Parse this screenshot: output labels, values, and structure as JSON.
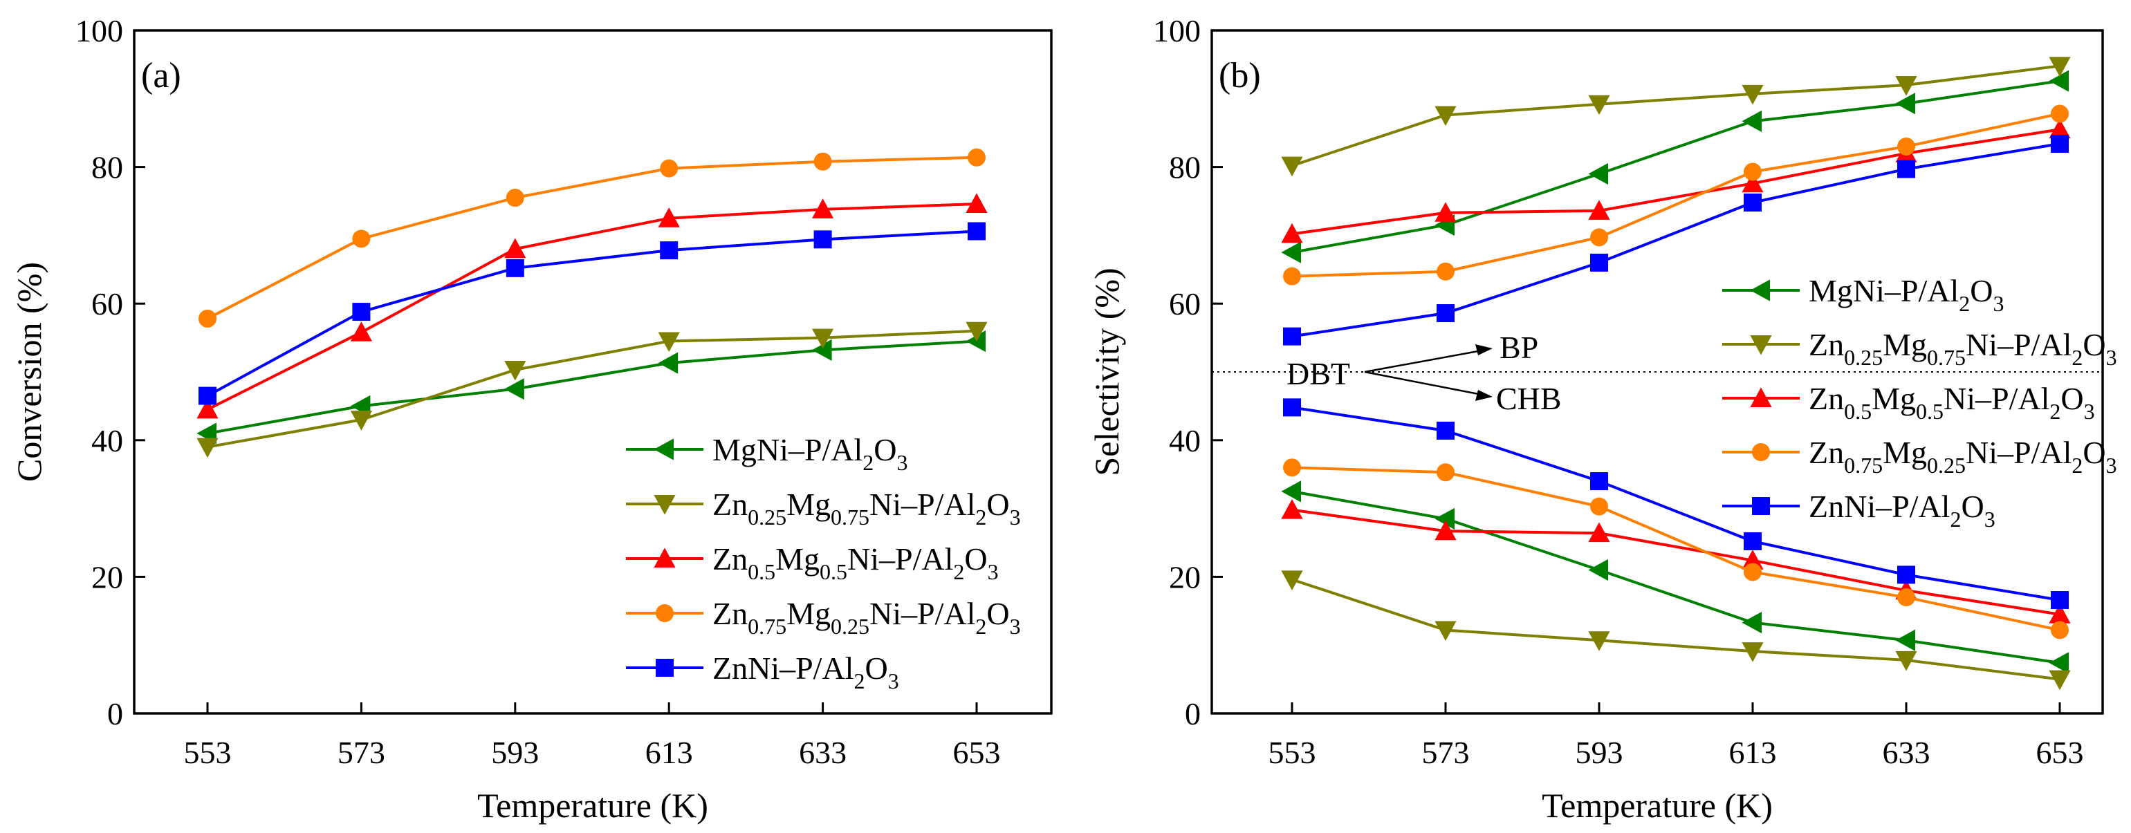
{
  "chart_data": [
    {
      "type": "line",
      "panel_label": "(a)",
      "xlabel": "Temperature (K)",
      "ylabel": "Conversion (%)",
      "x": [
        553,
        573,
        593,
        613,
        633,
        653
      ],
      "xticks": [
        "553",
        "573",
        "593",
        "613",
        "633",
        "653"
      ],
      "ylim": [
        0,
        100
      ],
      "yticks": [
        "0",
        "20",
        "40",
        "60",
        "80",
        "100"
      ],
      "legend_position": "bottom-right",
      "series": [
        {
          "name": "MgNi–P/Al2O3",
          "color": "#008000",
          "marker": "triangle-left",
          "values": [
            41.0,
            45.0,
            47.5,
            51.3,
            53.2,
            54.5
          ]
        },
        {
          "name": "Zn0.25Mg0.75Ni–P/Al2O3",
          "color": "#808000",
          "marker": "triangle-down",
          "values": [
            39.0,
            43.0,
            50.3,
            54.5,
            55.0,
            56.0
          ]
        },
        {
          "name": "Zn0.5Mg0.5Ni–P/Al2O3",
          "color": "#ff0000",
          "marker": "triangle-up",
          "values": [
            44.5,
            55.8,
            68.0,
            72.5,
            73.8,
            74.6
          ]
        },
        {
          "name": "Zn0.75Mg0.25Ni–P/Al2O3",
          "color": "#ff8000",
          "marker": "circle",
          "values": [
            57.8,
            69.5,
            75.5,
            79.8,
            80.8,
            81.4
          ]
        },
        {
          "name": "ZnNi–P/Al2O3",
          "color": "#0000ff",
          "marker": "square",
          "values": [
            46.5,
            58.8,
            65.2,
            67.8,
            69.4,
            70.6
          ]
        }
      ]
    },
    {
      "type": "line",
      "panel_label": "(b)",
      "xlabel": "Temperature (K)",
      "ylabel": "Selectivity (%)",
      "x": [
        553,
        573,
        593,
        613,
        633,
        653
      ],
      "xticks": [
        "553",
        "573",
        "593",
        "613",
        "633",
        "653"
      ],
      "ylim": [
        0,
        100
      ],
      "yticks": [
        "0",
        "20",
        "40",
        "60",
        "80",
        "100"
      ],
      "legend_position": "right",
      "reference_line": 50,
      "annotations": {
        "source": "DBT",
        "upper": "BP",
        "lower": "CHB"
      },
      "series": [
        {
          "name": "MgNi–P/Al2O3",
          "color": "#008000",
          "marker": "triangle-left",
          "bp": [
            67.5,
            71.5,
            79.0,
            86.7,
            89.3,
            92.6
          ],
          "chb": [
            32.5,
            28.5,
            21.0,
            13.3,
            10.7,
            7.4
          ]
        },
        {
          "name": "Zn0.25Mg0.75Ni–P/Al2O3",
          "color": "#808000",
          "marker": "triangle-down",
          "bp": [
            80.2,
            87.6,
            89.2,
            90.7,
            92.0,
            94.8
          ],
          "chb": [
            19.6,
            12.2,
            10.7,
            9.1,
            7.8,
            5.0
          ]
        },
        {
          "name": "Zn0.5Mg0.5Ni–P/Al2O3",
          "color": "#ff0000",
          "marker": "triangle-up",
          "bp": [
            70.2,
            73.3,
            73.6,
            77.6,
            82.0,
            85.5
          ],
          "chb": [
            29.8,
            26.7,
            26.4,
            22.4,
            18.0,
            14.5
          ]
        },
        {
          "name": "Zn0.75Mg0.25Ni–P/Al2O3",
          "color": "#ff8000",
          "marker": "circle",
          "bp": [
            64.0,
            64.7,
            69.7,
            79.3,
            83.0,
            87.8
          ],
          "chb": [
            36.0,
            35.3,
            30.3,
            20.7,
            17.0,
            12.2
          ]
        },
        {
          "name": "ZnNi–P/Al2O3",
          "color": "#0000ff",
          "marker": "square",
          "bp": [
            55.2,
            58.6,
            66.0,
            74.8,
            79.7,
            83.4
          ],
          "chb": [
            44.8,
            41.4,
            34.0,
            25.2,
            20.3,
            16.6
          ]
        }
      ]
    }
  ]
}
